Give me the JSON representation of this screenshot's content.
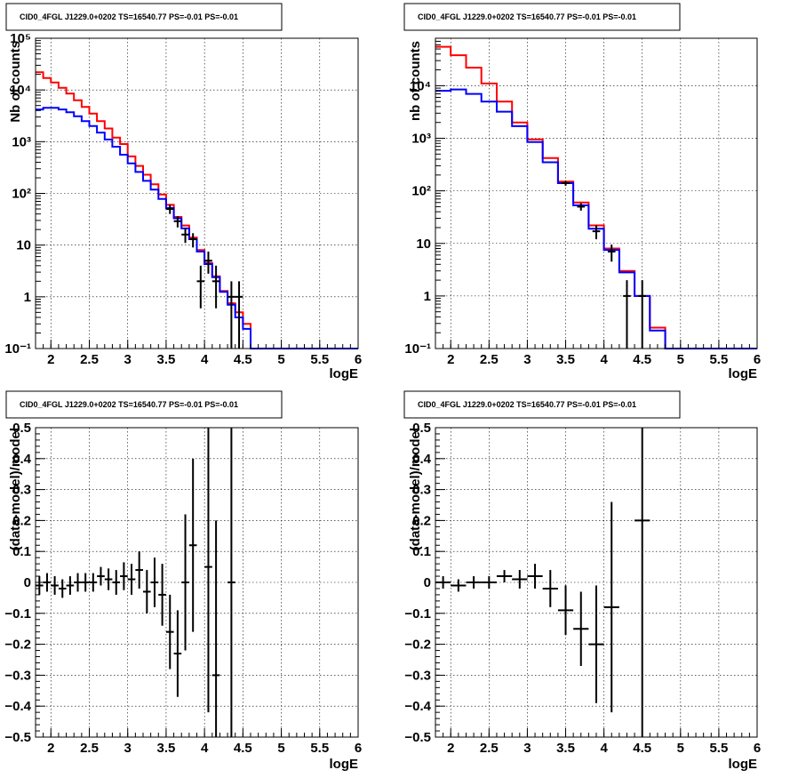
{
  "chart_data": [
    {
      "type": "line",
      "title": "CID0_4FGL J1229.0+0202 TS=16540.77 PS=-0.01 PS=-0.01",
      "xlabel": "logE",
      "ylabel": "Nb of counts",
      "xlim": [
        1.8,
        6.0
      ],
      "ylim": [
        0.1,
        100000
      ],
      "yscale": "log",
      "grid": true,
      "y_tick_labels": [
        "10⁻¹",
        "1",
        "10",
        "10²",
        "10³",
        "10⁴",
        "10⁵"
      ],
      "x_tick_labels": [
        "2",
        "2.5",
        "3",
        "3.5",
        "4",
        "4.5",
        "5",
        "5.5",
        "6"
      ],
      "bin_edges": [
        1.8,
        1.9,
        2.0,
        2.1,
        2.2,
        2.3,
        2.4,
        2.5,
        2.6,
        2.7,
        2.8,
        2.9,
        3.0,
        3.1,
        3.2,
        3.3,
        3.4,
        3.5,
        3.6,
        3.7,
        3.8,
        3.9,
        4.0,
        4.1,
        4.2,
        4.3,
        4.4,
        4.5,
        4.6,
        4.7,
        4.8,
        4.9,
        5.0,
        5.1,
        5.2,
        5.3,
        5.4,
        5.5,
        5.6,
        5.7,
        5.8,
        5.9,
        6.0
      ],
      "series": [
        {
          "color": "#ff0000",
          "values": [
            22000,
            17000,
            14000,
            11000,
            8500,
            6300,
            4700,
            3500,
            2500,
            1800,
            1200,
            900,
            520,
            340,
            230,
            150,
            95,
            60,
            35,
            24,
            14,
            8,
            4.5,
            2.5,
            1.3,
            0.75,
            0.5,
            0.3,
            0.1,
            0.1,
            0.1,
            0.1,
            0.1,
            0.1,
            0.1,
            0.1,
            0.1,
            0.1,
            0.1,
            0.1,
            0.1,
            0.1
          ]
        },
        {
          "color": "#0000ff",
          "values": [
            4200,
            4500,
            4500,
            4200,
            3700,
            3100,
            2500,
            2000,
            1500,
            1100,
            800,
            560,
            380,
            260,
            175,
            118,
            78,
            52,
            33,
            21,
            13,
            7.5,
            4.3,
            2.4,
            1.25,
            0.7,
            0.4,
            0.24,
            0.1,
            0.1,
            0.1,
            0.1,
            0.1,
            0.1,
            0.1,
            0.1,
            0.1,
            0.1,
            0.1,
            0.1,
            0.1,
            0.1
          ]
        }
      ],
      "data_points": [
        {
          "x": 3.55,
          "y": 50,
          "ylo": 40,
          "yhi": 60
        },
        {
          "x": 3.65,
          "y": 29,
          "ylo": 22,
          "yhi": 36
        },
        {
          "x": 3.75,
          "y": 16,
          "ylo": 11,
          "yhi": 21
        },
        {
          "x": 3.85,
          "y": 13,
          "ylo": 9,
          "yhi": 17
        },
        {
          "x": 3.95,
          "y": 2,
          "ylo": 0.6,
          "yhi": 4
        },
        {
          "x": 4.05,
          "y": 5,
          "ylo": 2.8,
          "yhi": 7.5
        },
        {
          "x": 4.15,
          "y": 2,
          "ylo": 0.6,
          "yhi": 4
        },
        {
          "x": 4.35,
          "y": 1,
          "ylo": 0.1,
          "yhi": 2
        },
        {
          "x": 4.45,
          "y": 1,
          "ylo": 0.1,
          "yhi": 2
        }
      ]
    },
    {
      "type": "line",
      "title": "CID0_4FGL J1229.0+0202 TS=16540.77 PS=-0.01 PS=-0.01",
      "xlabel": "logE",
      "ylabel": "nb of counts",
      "xlim": [
        1.8,
        6.0
      ],
      "ylim": [
        0.1,
        80000
      ],
      "yscale": "log",
      "grid": true,
      "y_tick_labels": [
        "10⁻¹",
        "1",
        "10",
        "10²",
        "10³",
        "10⁴"
      ],
      "x_tick_labels": [
        "2",
        "2.5",
        "3",
        "3.5",
        "4",
        "4.5",
        "5",
        "5.5",
        "6"
      ],
      "bin_edges": [
        1.8,
        2.0,
        2.2,
        2.4,
        2.6,
        2.8,
        3.0,
        3.2,
        3.4,
        3.6,
        3.8,
        4.0,
        4.2,
        4.4,
        4.6,
        4.8,
        5.0,
        5.2,
        5.4,
        5.6,
        5.8,
        6.0
      ],
      "series": [
        {
          "color": "#ff0000",
          "values": [
            55000,
            38000,
            22000,
            11000,
            5000,
            2000,
            950,
            420,
            150,
            60,
            22,
            8,
            3,
            1,
            0.25,
            0.1,
            0.1,
            0.1,
            0.1,
            0.1,
            0.1
          ]
        },
        {
          "color": "#0000ff",
          "values": [
            8000,
            8500,
            7000,
            5000,
            3200,
            1700,
            850,
            350,
            140,
            53,
            19,
            7.5,
            2.8,
            1,
            0.22,
            0.1,
            0.1,
            0.1,
            0.1,
            0.1,
            0.1
          ]
        }
      ],
      "data_points": [
        {
          "x": 3.5,
          "y": 140,
          "ylo": 125,
          "yhi": 155
        },
        {
          "x": 3.7,
          "y": 50,
          "ylo": 42,
          "yhi": 58
        },
        {
          "x": 3.9,
          "y": 17,
          "ylo": 12,
          "yhi": 22
        },
        {
          "x": 4.1,
          "y": 7,
          "ylo": 4.5,
          "yhi": 9.5
        },
        {
          "x": 4.3,
          "y": 1,
          "ylo": 0.1,
          "yhi": 2
        },
        {
          "x": 4.5,
          "y": 1,
          "ylo": 0.1,
          "yhi": 2
        }
      ]
    },
    {
      "type": "scatter",
      "title": "CID0_4FGL J1229.0+0202 TS=16540.77 PS=-0.01 PS=-0.01",
      "xlabel": "logE",
      "ylabel": "(data-model)/model",
      "xlim": [
        1.8,
        6.0
      ],
      "ylim": [
        -0.5,
        0.5
      ],
      "yscale": "linear",
      "grid": true,
      "y_ticks": [
        -0.5,
        -0.4,
        -0.3,
        -0.2,
        -0.1,
        0,
        0.1,
        0.2,
        0.3,
        0.4,
        0.5
      ],
      "y_tick_labels": [
        "−0.5",
        "−0.4",
        "−0.3",
        "−0.2",
        "−0.1",
        "0",
        "0.1",
        "0.2",
        "0.3",
        "0.4",
        "0.5"
      ],
      "x_tick_labels": [
        "2",
        "2.5",
        "3",
        "3.5",
        "4",
        "4.5",
        "5",
        "5.5",
        "6"
      ],
      "x_half_width": 0.05,
      "data_points": [
        {
          "x": 1.85,
          "y": -0.01,
          "err": 0.03
        },
        {
          "x": 1.95,
          "y": 0.0,
          "err": 0.03
        },
        {
          "x": 2.05,
          "y": -0.01,
          "err": 0.03
        },
        {
          "x": 2.15,
          "y": -0.02,
          "err": 0.03
        },
        {
          "x": 2.25,
          "y": -0.01,
          "err": 0.03
        },
        {
          "x": 2.35,
          "y": 0.0,
          "err": 0.03
        },
        {
          "x": 2.45,
          "y": 0.0,
          "err": 0.03
        },
        {
          "x": 2.55,
          "y": 0.0,
          "err": 0.03
        },
        {
          "x": 2.65,
          "y": 0.02,
          "err": 0.03
        },
        {
          "x": 2.75,
          "y": 0.01,
          "err": 0.035
        },
        {
          "x": 2.85,
          "y": 0.0,
          "err": 0.04
        },
        {
          "x": 2.95,
          "y": 0.02,
          "err": 0.045
        },
        {
          "x": 3.05,
          "y": 0.01,
          "err": 0.05
        },
        {
          "x": 3.15,
          "y": 0.04,
          "err": 0.06
        },
        {
          "x": 3.25,
          "y": -0.03,
          "err": 0.07
        },
        {
          "x": 3.35,
          "y": 0.0,
          "err": 0.08
        },
        {
          "x": 3.45,
          "y": -0.04,
          "err": 0.1
        },
        {
          "x": 3.55,
          "y": -0.16,
          "err": 0.12
        },
        {
          "x": 3.65,
          "y": -0.23,
          "err": 0.14
        },
        {
          "x": 3.75,
          "y": 0.0,
          "err": 0.22
        },
        {
          "x": 3.85,
          "y": 0.12,
          "err": 0.28
        },
        {
          "x": 4.05,
          "y": 0.05,
          "err": 0.47
        },
        {
          "x": 4.15,
          "y": -0.3,
          "err": 0.5
        },
        {
          "x": 4.35,
          "y": 0.0,
          "err": 0.5
        }
      ]
    },
    {
      "type": "scatter",
      "title": "CID0_4FGL J1229.0+0202 TS=16540.77 PS=-0.01 PS=-0.01",
      "xlabel": "logE",
      "ylabel": "(data-model)/model",
      "xlim": [
        1.8,
        6.0
      ],
      "ylim": [
        -0.5,
        0.5
      ],
      "yscale": "linear",
      "grid": true,
      "y_ticks": [
        -0.5,
        -0.4,
        -0.3,
        -0.2,
        -0.1,
        0,
        0.1,
        0.2,
        0.3,
        0.4,
        0.5
      ],
      "y_tick_labels": [
        "−0.5",
        "−0.4",
        "−0.3",
        "−0.2",
        "−0.1",
        "0",
        "0.1",
        "0.2",
        "0.3",
        "0.4",
        "0.5"
      ],
      "x_tick_labels": [
        "2",
        "2.5",
        "3",
        "3.5",
        "4",
        "4.5",
        "5",
        "5.5",
        "6"
      ],
      "x_half_width": 0.1,
      "data_points": [
        {
          "x": 1.9,
          "y": 0.0,
          "err": 0.02
        },
        {
          "x": 2.1,
          "y": -0.01,
          "err": 0.02
        },
        {
          "x": 2.3,
          "y": 0.0,
          "err": 0.02
        },
        {
          "x": 2.5,
          "y": 0.0,
          "err": 0.02
        },
        {
          "x": 2.7,
          "y": 0.02,
          "err": 0.02
        },
        {
          "x": 2.9,
          "y": 0.01,
          "err": 0.03
        },
        {
          "x": 3.1,
          "y": 0.02,
          "err": 0.04
        },
        {
          "x": 3.3,
          "y": -0.02,
          "err": 0.06
        },
        {
          "x": 3.5,
          "y": -0.09,
          "err": 0.08
        },
        {
          "x": 3.7,
          "y": -0.15,
          "err": 0.12
        },
        {
          "x": 3.9,
          "y": -0.2,
          "err": 0.19
        },
        {
          "x": 4.1,
          "y": -0.08,
          "err": 0.34
        },
        {
          "x": 4.5,
          "y": 0.2,
          "err": 0.7
        }
      ]
    }
  ]
}
